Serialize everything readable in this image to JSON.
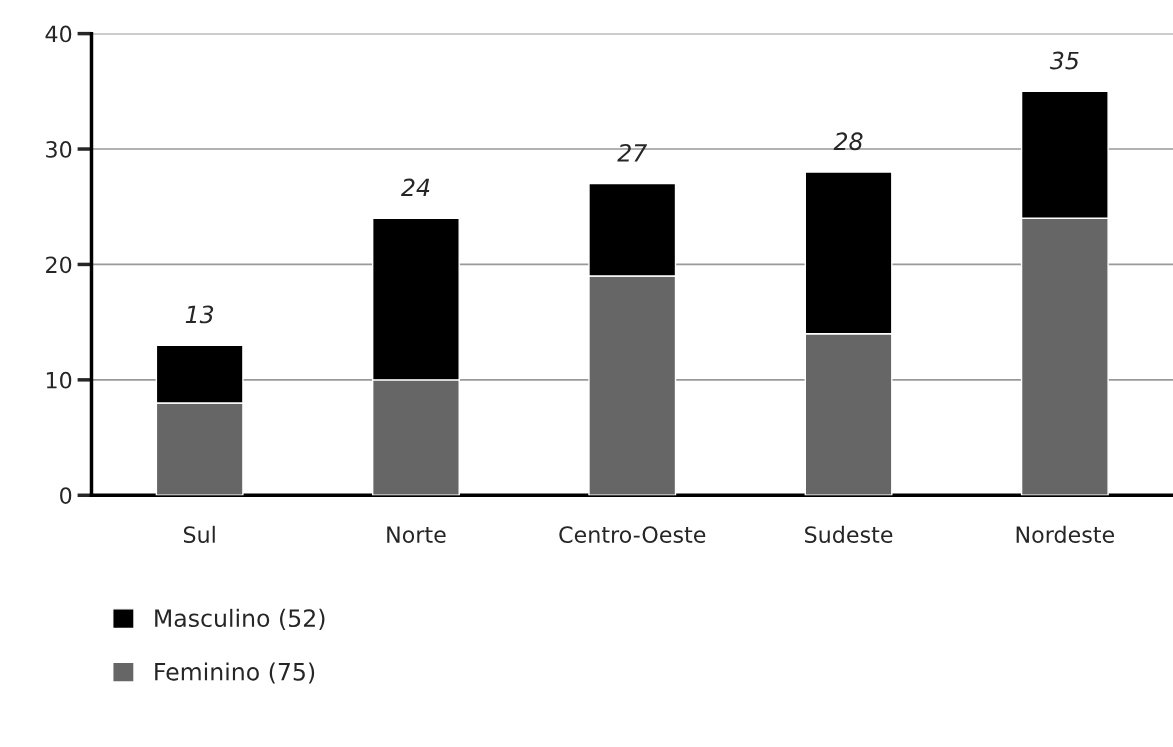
{
  "chart_data": {
    "type": "bar",
    "stacked": true,
    "categories": [
      "Sul",
      "Norte",
      "Centro-Oeste",
      "Sudeste",
      "Nordeste"
    ],
    "series": [
      {
        "name": "Feminino (75)",
        "color": "#666666",
        "values": [
          8,
          10,
          19,
          14,
          24
        ]
      },
      {
        "name": "Masculino (52)",
        "color": "#000000",
        "values": [
          5,
          14,
          8,
          14,
          11
        ]
      }
    ],
    "totals": [
      "13",
      "24",
      "27",
      "28",
      "35"
    ],
    "ylim": [
      0,
      40
    ],
    "yticks": [
      0,
      10,
      20,
      30,
      40
    ],
    "grid": "y",
    "legend": "bottom left"
  }
}
